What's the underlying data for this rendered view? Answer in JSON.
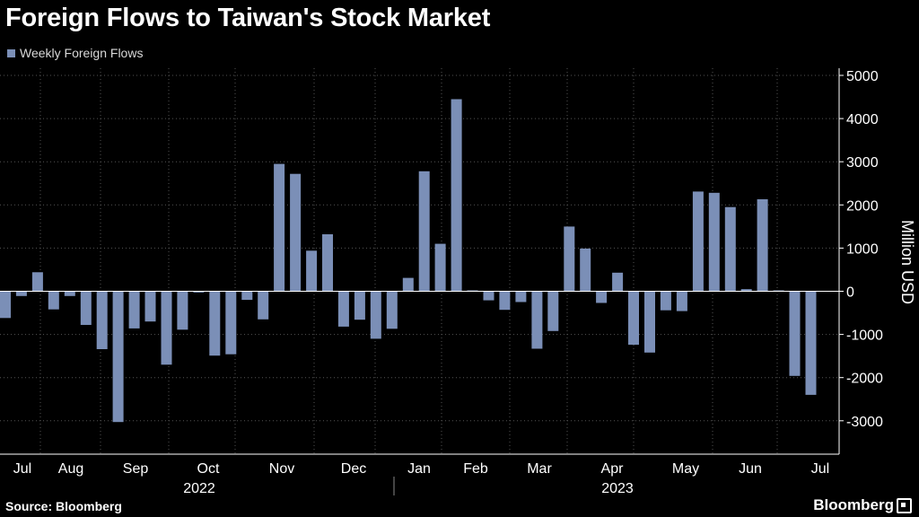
{
  "title": "Foreign Flows to Taiwan's Stock Market",
  "source": "Source: Bloomberg",
  "brand": "Bloomberg",
  "colors": {
    "bar": "#7b8fb7",
    "grid": "#555555",
    "background": "#000000"
  },
  "chart_data": {
    "type": "bar",
    "title": "Foreign Flows to Taiwan's Stock Market",
    "ylabel": "Million USD",
    "xlabel": "",
    "ylim": [
      -3700,
      5000
    ],
    "yticks": [
      5000,
      4000,
      3000,
      2000,
      1000,
      0,
      -1000,
      -2000,
      -3000
    ],
    "grid": true,
    "legend_position": "top-left",
    "x_month_labels": [
      "Jul",
      "Aug",
      "Sep",
      "Oct",
      "Nov",
      "Dec",
      "Jan",
      "Feb",
      "Mar",
      "Apr",
      "May",
      "Jun",
      "Jul"
    ],
    "x_year_labels": [
      "2022",
      "2023"
    ],
    "series": [
      {
        "name": "Weekly Foreign Flows",
        "values": [
          -620,
          -110,
          440,
          -420,
          -110,
          -780,
          -1340,
          -3030,
          -860,
          -700,
          -1700,
          -890,
          -30,
          -1490,
          -1460,
          -200,
          -650,
          2950,
          2720,
          940,
          1320,
          -820,
          -660,
          -1100,
          -870,
          310,
          2780,
          1100,
          4450,
          20,
          -210,
          -430,
          -250,
          -1330,
          -920,
          1500,
          990,
          -270,
          430,
          -1240,
          -1420,
          -440,
          -460,
          2310,
          2280,
          1950,
          50,
          2130,
          20,
          -1960,
          -2400
        ]
      }
    ]
  }
}
